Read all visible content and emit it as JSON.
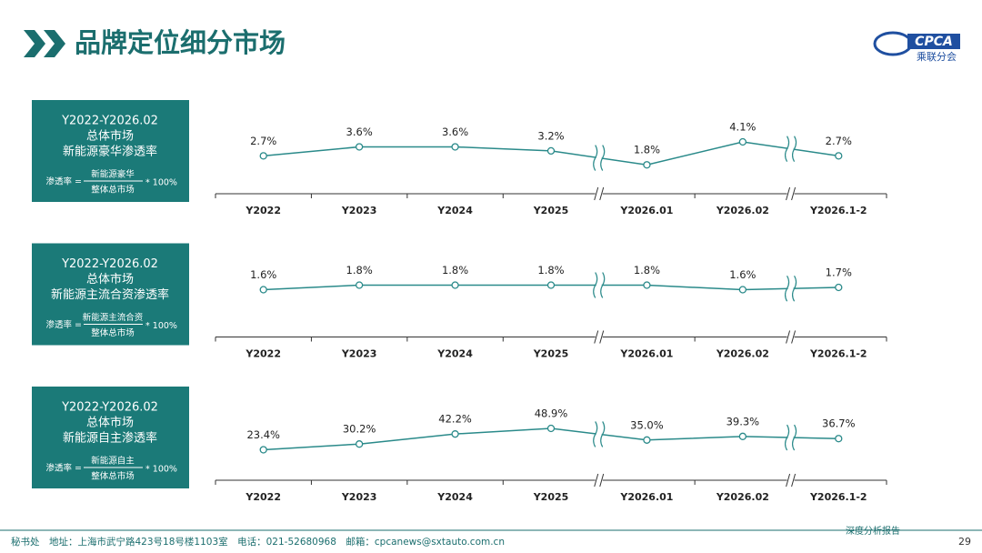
{
  "header": {
    "title": "品牌定位细分市场",
    "logo": "CPCA",
    "logo_sub": "乘联分会"
  },
  "footer": {
    "contact": "秘书处　地址：上海市武宁路423号18号楼1103室　电话：021-52680968　邮箱：cpcanews@sxtauto.com.cn",
    "report": "深度分析报告",
    "page": 29
  },
  "chart_data": [
    {
      "type": "line",
      "color": "#2a8a8a",
      "box": {
        "period": "Y2022-Y2026.02",
        "scope": "总体市场",
        "metric": "新能源豪华渗透率",
        "formula_label": "渗透率 =",
        "numerator": "新能源豪华",
        "denominator": "整体总市场",
        "multiplier": "* 100%"
      },
      "categories": [
        "Y2022",
        "Y2023",
        "Y2024",
        "Y2025",
        "Y2026.01",
        "Y2026.02",
        "Y2026.1-2"
      ],
      "values": [
        2.7,
        3.6,
        3.6,
        3.2,
        1.8,
        4.1,
        2.7
      ],
      "value_labels": [
        "2.7%",
        "3.6%",
        "3.6%",
        "3.2%",
        "1.8%",
        "4.1%",
        "2.7%"
      ]
    },
    {
      "type": "line",
      "color": "#2a8a8a",
      "box": {
        "period": "Y2022-Y2026.02",
        "scope": "总体市场",
        "metric": "新能源主流合资渗透率",
        "formula_label": "渗透率 =",
        "numerator": "新能源主流合资",
        "denominator": "整体总市场",
        "multiplier": "* 100%"
      },
      "categories": [
        "Y2022",
        "Y2023",
        "Y2024",
        "Y2025",
        "Y2026.01",
        "Y2026.02",
        "Y2026.1-2"
      ],
      "values": [
        1.6,
        1.8,
        1.8,
        1.8,
        1.8,
        1.6,
        1.7
      ],
      "value_labels": [
        "1.6%",
        "1.8%",
        "1.8%",
        "1.8%",
        "1.8%",
        "1.6%",
        "1.7%"
      ]
    },
    {
      "type": "line",
      "color": "#2a8a8a",
      "box": {
        "period": "Y2022-Y2026.02",
        "scope": "总体市场",
        "metric": "新能源自主渗透率",
        "formula_label": "渗透率 =",
        "numerator": "新能源自主",
        "denominator": "整体总市场",
        "multiplier": "* 100%"
      },
      "categories": [
        "Y2022",
        "Y2023",
        "Y2024",
        "Y2025",
        "Y2026.01",
        "Y2026.02",
        "Y2026.1-2"
      ],
      "values": [
        23.4,
        30.2,
        42.2,
        48.9,
        35.0,
        39.3,
        36.7
      ],
      "value_labels": [
        "23.4%",
        "30.2%",
        "42.2%",
        "48.9%",
        "35.0%",
        "39.3%",
        "36.7%"
      ]
    }
  ]
}
